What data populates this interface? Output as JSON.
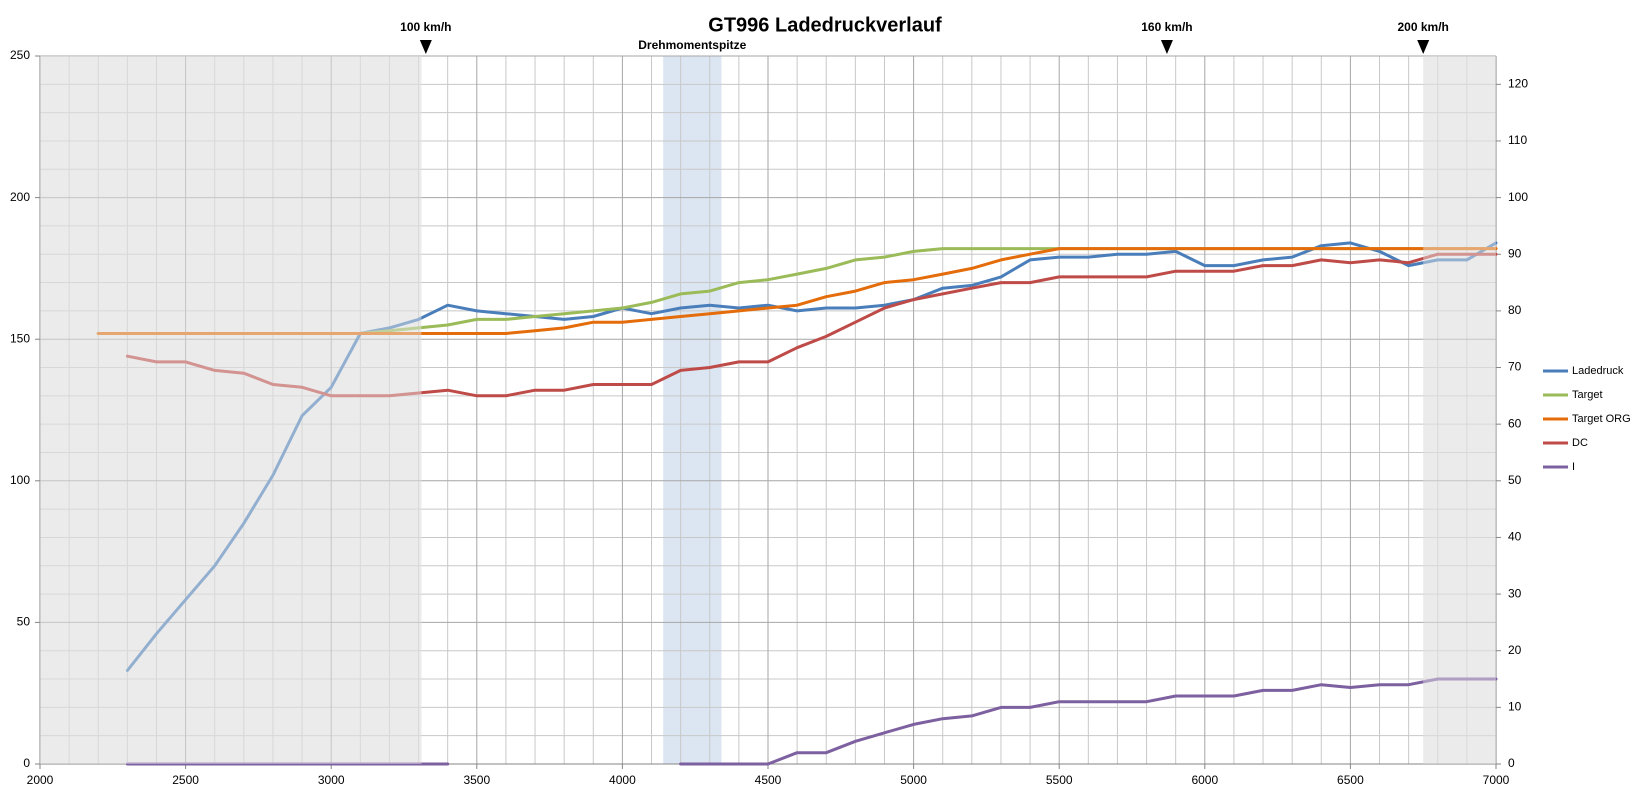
{
  "chart_data": {
    "type": "line",
    "title": "GT996 Ladedruckverlauf",
    "x": [
      2200,
      2300,
      2400,
      2500,
      2600,
      2700,
      2800,
      2900,
      3000,
      3100,
      3200,
      3300,
      3400,
      3500,
      3600,
      3700,
      3800,
      3900,
      4000,
      4100,
      4200,
      4300,
      4400,
      4500,
      4600,
      4700,
      4800,
      4900,
      5000,
      5100,
      5200,
      5300,
      5400,
      5500,
      5600,
      5700,
      5800,
      5900,
      6000,
      6100,
      6200,
      6300,
      6400,
      6500,
      6600,
      6700,
      6800,
      6900,
      7000
    ],
    "series": [
      {
        "name": "Ladedruck",
        "color": "#4a7ebb",
        "values": [
          null,
          33,
          46,
          58,
          70,
          85,
          102,
          123,
          133,
          152,
          154,
          157,
          162,
          160,
          159,
          158,
          157,
          158,
          161,
          159,
          161,
          162,
          161,
          162,
          160,
          161,
          161,
          162,
          164,
          168,
          169,
          172,
          178,
          179,
          179,
          180,
          180,
          181,
          176,
          176,
          178,
          179,
          183,
          184,
          181,
          176,
          178,
          178,
          184
        ]
      },
      {
        "name": "Target",
        "color": "#9bbb59",
        "values": [
          152,
          152,
          152,
          152,
          152,
          152,
          152,
          152,
          152,
          152,
          153,
          154,
          155,
          157,
          157,
          158,
          159,
          160,
          161,
          163,
          166,
          167,
          170,
          171,
          173,
          175,
          178,
          179,
          181,
          182,
          182,
          182,
          182,
          182,
          182,
          182,
          182,
          182,
          182,
          182,
          182,
          182,
          182,
          182,
          182,
          182,
          182,
          182,
          182
        ]
      },
      {
        "name": "Target ORG",
        "color": "#e46c0a",
        "values": [
          152,
          152,
          152,
          152,
          152,
          152,
          152,
          152,
          152,
          152,
          152,
          152,
          152,
          152,
          152,
          153,
          154,
          156,
          156,
          157,
          158,
          159,
          160,
          161,
          162,
          165,
          167,
          170,
          171,
          173,
          175,
          178,
          180,
          182,
          182,
          182,
          182,
          182,
          182,
          182,
          182,
          182,
          182,
          182,
          182,
          182,
          182,
          182,
          182
        ]
      },
      {
        "name": "DC",
        "color": "#be4b48",
        "values": [
          null,
          144,
          142,
          142,
          139,
          138,
          134,
          133,
          130,
          130,
          130,
          131,
          132,
          130,
          130,
          132,
          132,
          134,
          134,
          134,
          139,
          140,
          142,
          142,
          147,
          151,
          156,
          161,
          164,
          166,
          168,
          170,
          170,
          172,
          172,
          172,
          172,
          174,
          174,
          174,
          176,
          176,
          178,
          177,
          178,
          177,
          180,
          180,
          180
        ]
      },
      {
        "name": "I",
        "color": "#7d60a0",
        "values": [
          null,
          0,
          0,
          0,
          0,
          0,
          0,
          0,
          0,
          0,
          0,
          0,
          0,
          null,
          null,
          null,
          null,
          null,
          null,
          null,
          0,
          0,
          0,
          0,
          4,
          4,
          8,
          11,
          14,
          16,
          17,
          20,
          20,
          22,
          22,
          22,
          22,
          24,
          24,
          24,
          26,
          26,
          28,
          27,
          28,
          28,
          30,
          30,
          30
        ]
      }
    ],
    "xlim": [
      2000,
      7000
    ],
    "xticks": [
      2000,
      2500,
      3000,
      3500,
      4000,
      4500,
      5000,
      5500,
      6000,
      6500,
      7000
    ],
    "ylim": [
      0,
      250
    ],
    "yticks": [
      0,
      50,
      100,
      150,
      200,
      250
    ],
    "y2lim": [
      0,
      125
    ],
    "y2ticks": [
      0,
      10,
      20,
      30,
      40,
      50,
      60,
      70,
      80,
      90,
      100,
      110,
      120
    ],
    "grid": true,
    "minor_divisions": 5,
    "legend": "right",
    "shaded_ranges": [
      [
        2000,
        3310
      ],
      [
        6750,
        7000
      ]
    ],
    "highlight": {
      "label": "Drehmomentspitze",
      "range": [
        4140,
        4340
      ],
      "color": "#dce6f2"
    },
    "markers": [
      {
        "label": "100 km/h",
        "x": 3325
      },
      {
        "label": "160 km/h",
        "x": 5870
      },
      {
        "label": "200 km/h",
        "x": 6750
      }
    ]
  }
}
